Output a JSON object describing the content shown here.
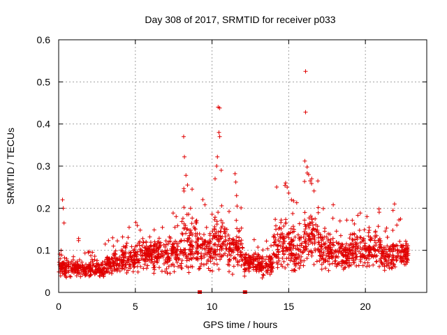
{
  "chart_data": {
    "type": "scatter",
    "title": "Day 308 of 2017, SRMTID for receiver p033",
    "xlabel": "GPS time / hours",
    "ylabel": "SRMTID / TECUs",
    "xlim": [
      0,
      24
    ],
    "ylim": [
      0,
      0.6
    ],
    "xticks": [
      0,
      5,
      10,
      15,
      20
    ],
    "xtick_labels": [
      "0",
      "5",
      "10",
      "15",
      "20"
    ],
    "yticks": [
      0,
      0.1,
      0.2,
      0.3,
      0.4,
      0.5,
      0.6
    ],
    "ytick_labels": [
      "0",
      "0.1",
      "0.2",
      "0.3",
      "0.4",
      "0.5",
      "0.6"
    ],
    "grid": true,
    "marker": "+",
    "color": "#e00000",
    "outliers": [
      {
        "x": 0.1,
        "y": 0.08
      },
      {
        "x": 0.25,
        "y": 0.22
      },
      {
        "x": 0.3,
        "y": 0.2
      },
      {
        "x": 0.35,
        "y": 0.165
      },
      {
        "x": 1.3,
        "y": 0.128
      },
      {
        "x": 1.3,
        "y": 0.123
      },
      {
        "x": 8.15,
        "y": 0.37
      },
      {
        "x": 8.2,
        "y": 0.322
      },
      {
        "x": 8.3,
        "y": 0.278
      },
      {
        "x": 8.4,
        "y": 0.255
      },
      {
        "x": 8.7,
        "y": 0.245
      },
      {
        "x": 8.6,
        "y": 0.2
      },
      {
        "x": 10.4,
        "y": 0.44
      },
      {
        "x": 10.5,
        "y": 0.438
      },
      {
        "x": 10.45,
        "y": 0.38
      },
      {
        "x": 10.5,
        "y": 0.37
      },
      {
        "x": 10.35,
        "y": 0.322
      },
      {
        "x": 10.3,
        "y": 0.3
      },
      {
        "x": 10.2,
        "y": 0.27
      },
      {
        "x": 10.6,
        "y": 0.29
      },
      {
        "x": 11.5,
        "y": 0.282
      },
      {
        "x": 11.55,
        "y": 0.262
      },
      {
        "x": 11.6,
        "y": 0.23
      },
      {
        "x": 14.8,
        "y": 0.26
      },
      {
        "x": 14.9,
        "y": 0.25
      },
      {
        "x": 15.0,
        "y": 0.236
      },
      {
        "x": 16.1,
        "y": 0.525
      },
      {
        "x": 16.1,
        "y": 0.428
      },
      {
        "x": 16.05,
        "y": 0.312
      },
      {
        "x": 16.2,
        "y": 0.298
      },
      {
        "x": 16.3,
        "y": 0.28
      },
      {
        "x": 16.4,
        "y": 0.265
      },
      {
        "x": 16.5,
        "y": 0.27
      },
      {
        "x": 21.9,
        "y": 0.21
      },
      {
        "x": 21.8,
        "y": 0.195
      },
      {
        "x": 20.1,
        "y": 0.18
      }
    ],
    "bands": [
      {
        "x": [
          0.0,
          1.0
        ],
        "median": 0.06,
        "spread": 0.025
      },
      {
        "x": [
          1.0,
          2.0
        ],
        "median": 0.055,
        "spread": 0.02
      },
      {
        "x": [
          2.0,
          3.0
        ],
        "median": 0.055,
        "spread": 0.022
      },
      {
        "x": [
          3.0,
          4.0
        ],
        "median": 0.07,
        "spread": 0.03
      },
      {
        "x": [
          4.0,
          5.0
        ],
        "median": 0.08,
        "spread": 0.035
      },
      {
        "x": [
          5.0,
          6.0
        ],
        "median": 0.09,
        "spread": 0.04
      },
      {
        "x": [
          6.0,
          7.0
        ],
        "median": 0.09,
        "spread": 0.04
      },
      {
        "x": [
          7.0,
          8.0
        ],
        "median": 0.09,
        "spread": 0.045
      },
      {
        "x": [
          8.0,
          9.0
        ],
        "median": 0.12,
        "spread": 0.07
      },
      {
        "x": [
          9.0,
          10.0
        ],
        "median": 0.1,
        "spread": 0.06
      },
      {
        "x": [
          10.0,
          11.0
        ],
        "median": 0.12,
        "spread": 0.07
      },
      {
        "x": [
          11.0,
          12.0
        ],
        "median": 0.1,
        "spread": 0.06
      },
      {
        "x": [
          12.0,
          13.0
        ],
        "median": 0.07,
        "spread": 0.03
      },
      {
        "x": [
          13.0,
          14.0
        ],
        "median": 0.065,
        "spread": 0.03
      },
      {
        "x": [
          14.0,
          15.0
        ],
        "median": 0.11,
        "spread": 0.07
      },
      {
        "x": [
          15.0,
          16.0
        ],
        "median": 0.1,
        "spread": 0.06
      },
      {
        "x": [
          16.0,
          17.0
        ],
        "median": 0.13,
        "spread": 0.07
      },
      {
        "x": [
          17.0,
          18.0
        ],
        "median": 0.1,
        "spread": 0.05
      },
      {
        "x": [
          18.0,
          19.0
        ],
        "median": 0.09,
        "spread": 0.04
      },
      {
        "x": [
          19.0,
          20.0
        ],
        "median": 0.1,
        "spread": 0.05
      },
      {
        "x": [
          20.0,
          21.0
        ],
        "median": 0.1,
        "spread": 0.05
      },
      {
        "x": [
          21.0,
          22.0
        ],
        "median": 0.085,
        "spread": 0.045
      },
      {
        "x": [
          22.0,
          22.8
        ],
        "median": 0.09,
        "spread": 0.04
      }
    ],
    "gap_markers": [
      {
        "x": 9.2,
        "y": 0
      },
      {
        "x": 12.15,
        "y": 0
      }
    ]
  }
}
